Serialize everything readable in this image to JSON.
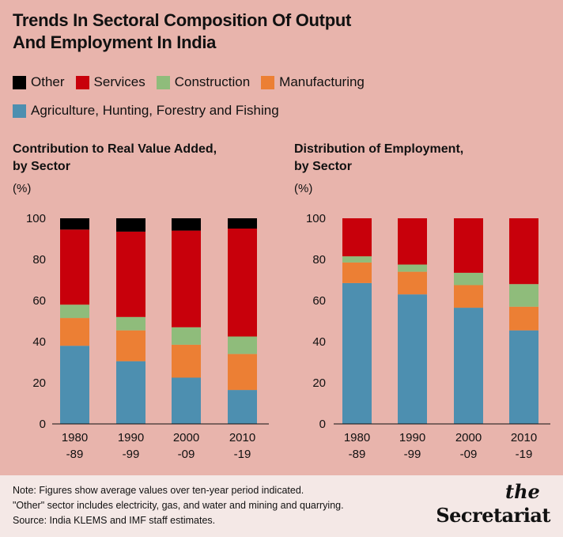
{
  "title_line1": "Trends In Sectoral Composition Of Output",
  "title_line2": "And Employment In India",
  "legend": [
    {
      "label": "Other",
      "color": "#000000"
    },
    {
      "label": "Services",
      "color": "#c8000b"
    },
    {
      "label": "Construction",
      "color": "#8fbc7b"
    },
    {
      "label": "Manufacturing",
      "color": "#ec7f34"
    },
    {
      "label": "Agriculture, Hunting, Forestry and Fishing",
      "color": "#4d8fb0"
    }
  ],
  "footer": {
    "note1": "Note: Figures show average values over ten-year period indicated.",
    "note2": "\"Other\" sector includes electricity, gas, and water and mining and quarrying.",
    "source": "Source: India KLEMS and IMF staff estimates.",
    "logo_the": "the",
    "logo_main": "Secretariat"
  },
  "chart_data": [
    {
      "type": "bar",
      "stacked": true,
      "title_line1": "Contribution to Real Value Added,",
      "title_line2": "by Sector",
      "unit": "(%)",
      "categories": [
        [
          "1980",
          "-89"
        ],
        [
          "1990",
          "-99"
        ],
        [
          "2000",
          "-09"
        ],
        [
          "2010",
          "-19"
        ]
      ],
      "ylim": [
        0,
        100
      ],
      "yticks": [
        0,
        20,
        40,
        60,
        80,
        100
      ],
      "series": [
        {
          "name": "Agriculture, Hunting, Forestry and Fishing",
          "color": "#4d8fb0",
          "values": [
            38,
            30.5,
            22.5,
            16.5
          ]
        },
        {
          "name": "Manufacturing",
          "color": "#ec7f34",
          "values": [
            13.5,
            15,
            16,
            17.5
          ]
        },
        {
          "name": "Construction",
          "color": "#8fbc7b",
          "values": [
            6.5,
            6.5,
            8.5,
            8.5
          ]
        },
        {
          "name": "Services",
          "color": "#c8000b",
          "values": [
            36.5,
            41.5,
            47,
            52.5
          ]
        },
        {
          "name": "Other",
          "color": "#000000",
          "values": [
            5.5,
            6.5,
            6,
            5
          ]
        }
      ]
    },
    {
      "type": "bar",
      "stacked": true,
      "title_line1": "Distribution of Employment,",
      "title_line2": "by Sector",
      "unit": "(%)",
      "categories": [
        [
          "1980",
          "-89"
        ],
        [
          "1990",
          "-99"
        ],
        [
          "2000",
          "-09"
        ],
        [
          "2010",
          "-19"
        ]
      ],
      "ylim": [
        0,
        100
      ],
      "yticks": [
        0,
        20,
        40,
        60,
        80,
        100
      ],
      "series": [
        {
          "name": "Agriculture, Hunting, Forestry and Fishing",
          "color": "#4d8fb0",
          "values": [
            68.5,
            63,
            56.5,
            45.5
          ]
        },
        {
          "name": "Manufacturing",
          "color": "#ec7f34",
          "values": [
            10,
            11,
            11,
            11.5
          ]
        },
        {
          "name": "Construction",
          "color": "#8fbc7b",
          "values": [
            3,
            3.5,
            6,
            11
          ]
        },
        {
          "name": "Services",
          "color": "#c8000b",
          "values": [
            18.5,
            22.5,
            26.5,
            32
          ]
        },
        {
          "name": "Other",
          "color": "#000000",
          "values": [
            0,
            0,
            0,
            0
          ]
        }
      ]
    }
  ]
}
